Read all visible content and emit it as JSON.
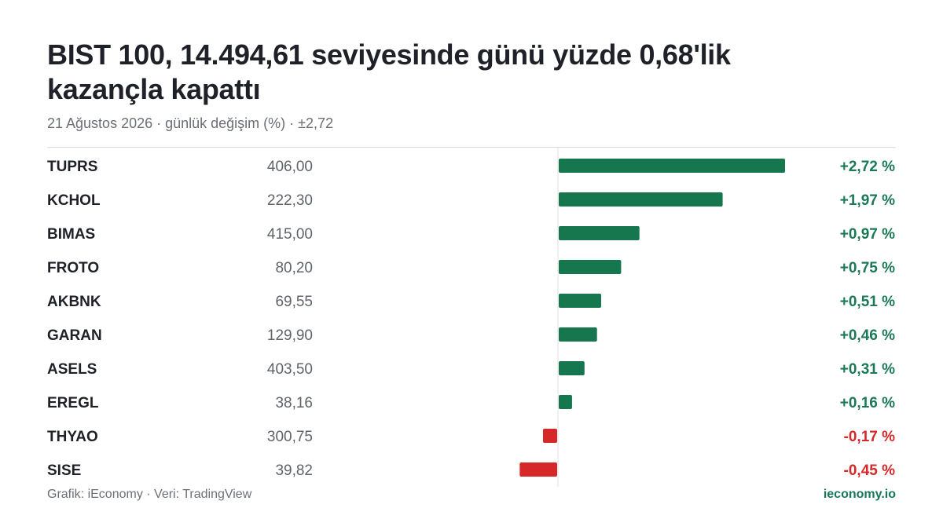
{
  "header": {
    "title": "BIST 100, 14.494,61 seviyesinde günü yüzde 0,68'lik kazançla kapattı",
    "subtitle": "21 Ağustos 2026 · günlük değişim (%) · ±2,72"
  },
  "footer": {
    "source": "Grafik: iEconomy · Veri: TradingView",
    "brand": "ieconomy.io"
  },
  "colors": {
    "positive": "#16774f",
    "negative": "#d62828",
    "positive_text": "#1b7a55",
    "negative_text": "#d62828"
  },
  "chart_data": {
    "type": "bar",
    "orientation": "horizontal",
    "categories": [
      "TUPRS",
      "KCHOL",
      "BIMAS",
      "FROTO",
      "AKBNK",
      "GARAN",
      "ASELS",
      "EREGL",
      "THYAO",
      "SISE"
    ],
    "prices": [
      "406,00",
      "222,30",
      "415,00",
      "80,20",
      "69,55",
      "129,90",
      "403,50",
      "38,16",
      "300,75",
      "39,82"
    ],
    "values": [
      2.72,
      1.97,
      0.97,
      0.75,
      0.51,
      0.46,
      0.31,
      0.16,
      -0.17,
      -0.45
    ],
    "value_labels": [
      "+2,72 %",
      "+1,97 %",
      "+0,97 %",
      "+0,75 %",
      "+0,51 %",
      "+0,46 %",
      "+0,31 %",
      "+0,16 %",
      "-0,17 %",
      "-0,45 %"
    ],
    "xlim": [
      -2.72,
      2.72
    ],
    "grid": false,
    "legend": "none"
  }
}
